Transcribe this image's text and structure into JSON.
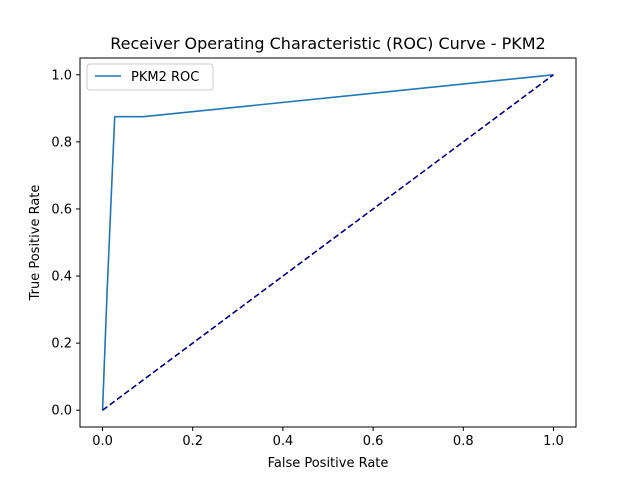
{
  "chart_data": {
    "type": "line",
    "title": "Receiver Operating Characteristic (ROC) Curve - PKM2",
    "xlabel": "False Positive Rate",
    "ylabel": "True Positive Rate",
    "xlim": [
      -0.05,
      1.05
    ],
    "ylim": [
      -0.05,
      1.05
    ],
    "xticks": [
      0.0,
      0.2,
      0.4,
      0.6,
      0.8,
      1.0
    ],
    "yticks": [
      0.0,
      0.2,
      0.4,
      0.6,
      0.8,
      1.0
    ],
    "xtick_labels": [
      "0.0",
      "0.2",
      "0.4",
      "0.6",
      "0.8",
      "1.0"
    ],
    "ytick_labels": [
      "0.0",
      "0.2",
      "0.4",
      "0.6",
      "0.8",
      "1.0"
    ],
    "grid": false,
    "legend_position": "top-left",
    "series": [
      {
        "name": "PKM2 ROC",
        "color": "#1f77b4",
        "style": "solid",
        "x": [
          0.0,
          0.01,
          0.027,
          0.09,
          1.0
        ],
        "y": [
          0.0,
          0.35,
          0.875,
          0.875,
          1.0
        ]
      },
      {
        "color": "#000080",
        "style": "dashed",
        "x": [
          0.0,
          1.0
        ],
        "y": [
          0.0,
          1.0
        ]
      }
    ]
  }
}
